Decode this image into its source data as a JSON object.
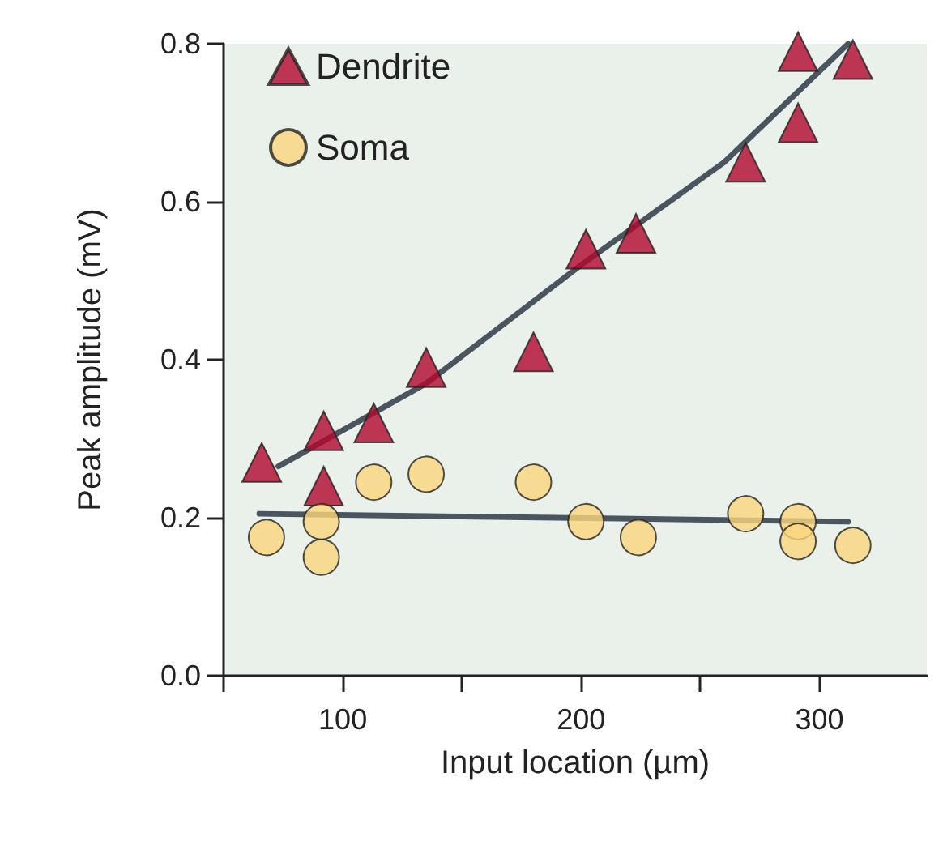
{
  "chart_data": {
    "type": "scatter",
    "xlabel": "Input location (µm)",
    "ylabel": "Peak amplitude (mV)",
    "xlim": [
      50,
      345
    ],
    "xticks": [
      {
        "value": 50,
        "label": null
      },
      100,
      {
        "value": 150,
        "label": null
      },
      200,
      {
        "value": 250,
        "label": null
      },
      300
    ],
    "ylim": [
      0,
      0.8
    ],
    "yticks": [
      {
        "value": 0,
        "label": "0.0"
      },
      {
        "value": 0.2,
        "label": "0.2"
      },
      {
        "value": 0.4,
        "label": "0.4"
      },
      {
        "value": 0.6,
        "label": "0.6"
      },
      {
        "value": 0.8,
        "label": "0.8"
      }
    ],
    "grid": false,
    "legend": "top left",
    "series": [
      {
        "name": "Dendrite",
        "marker": "triangle",
        "color": "#b0062c",
        "x": [
          66,
          92,
          92,
          113,
          135,
          180,
          202,
          223,
          269,
          291,
          291,
          314
        ],
        "values": [
          0.27,
          0.31,
          0.24,
          0.32,
          0.39,
          0.41,
          0.54,
          0.56,
          0.65,
          0.7,
          0.79,
          0.78
        ]
      },
      {
        "name": "Soma",
        "marker": "circle",
        "color": "#fad67c",
        "x": [
          68,
          91,
          91,
          113,
          135,
          180,
          202,
          224,
          269,
          291,
          291,
          314
        ],
        "values": [
          0.175,
          0.195,
          0.15,
          0.245,
          0.255,
          0.245,
          0.195,
          0.175,
          0.205,
          0.195,
          0.17,
          0.165
        ]
      },
      {
        "type": "line",
        "marker": "none",
        "color": "#4a5560",
        "x": [
          73,
          135,
          200,
          260,
          312
        ],
        "values": [
          0.265,
          0.37,
          0.52,
          0.65,
          0.8
        ]
      },
      {
        "type": "line",
        "marker": "none",
        "color": "#4a5560",
        "x": [
          65,
          312
        ],
        "values": [
          0.205,
          0.195
        ]
      }
    ]
  }
}
